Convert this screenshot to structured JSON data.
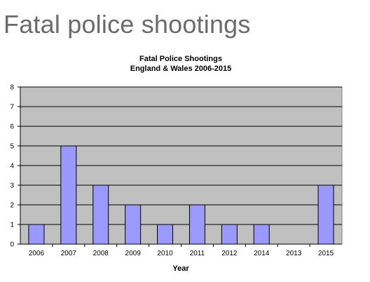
{
  "slide": {
    "title": "Fatal police shootings"
  },
  "chart_data": {
    "type": "bar",
    "title": "Fatal Police Shootings",
    "subtitle": "England & Wales 2006-2015",
    "xlabel": "Year",
    "ylabel": "",
    "categories": [
      "2006",
      "2007",
      "2008",
      "2009",
      "2010",
      "2011",
      "2012",
      "2014",
      "2013",
      "2015"
    ],
    "values": [
      1,
      5,
      3,
      2,
      1,
      2,
      1,
      1,
      0,
      3
    ],
    "ylim": [
      0,
      8
    ],
    "yticks": [
      "0",
      "1",
      "2",
      "3",
      "4",
      "5",
      "6",
      "7",
      "8"
    ],
    "grid": true,
    "legend": "none",
    "colors": {
      "bar": "#9999ff",
      "bar_border": "#000000",
      "plot_bg": "#c0c0c0",
      "grid": "#000000"
    }
  }
}
